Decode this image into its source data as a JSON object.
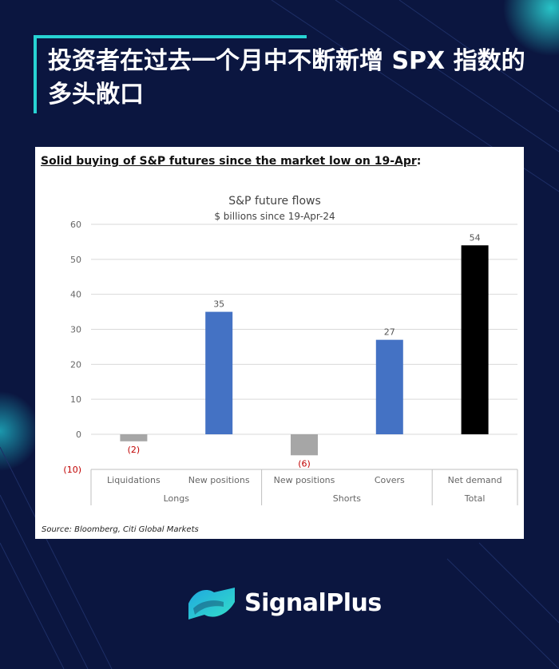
{
  "headline": "投资者在过去一个月中不断新增 SPX 指数的多头敞口",
  "card": {
    "heading": "Solid buying of S&P futures since the market low on 19-Apr",
    "heading_suffix": ":",
    "source": "Source: Bloomberg, Citi Global Markets"
  },
  "chart_data": {
    "type": "bar",
    "title": "S&P future flows",
    "subtitle": "$ billions since 19-Apr-24",
    "categories": [
      "Liquidations",
      "New positions",
      "New positions",
      "Covers",
      "Net demand"
    ],
    "groups": [
      {
        "label": "Longs",
        "categories": [
          0,
          1
        ]
      },
      {
        "label": "Shorts",
        "categories": [
          2,
          3
        ]
      },
      {
        "label": "Total",
        "categories": [
          4
        ]
      }
    ],
    "values": [
      -2,
      35,
      -6,
      27,
      54
    ],
    "data_labels": [
      "(2)",
      "35",
      "(6)",
      "27",
      "54"
    ],
    "bar_colors": [
      "#a6a6a6",
      "#4472c4",
      "#a6a6a6",
      "#4472c4",
      "#000000"
    ],
    "negative_label_color": "#c00000",
    "ylim": [
      -10,
      60
    ],
    "yticks": [
      -10,
      0,
      10,
      20,
      30,
      40,
      50,
      60
    ],
    "ytick_labels": [
      "(10)",
      "0",
      "10",
      "20",
      "30",
      "40",
      "50",
      "60"
    ],
    "grid": true,
    "legend": "none"
  },
  "brand": {
    "name": "SignalPlus",
    "accent": "#27d3d3",
    "background": "#0b1640"
  }
}
